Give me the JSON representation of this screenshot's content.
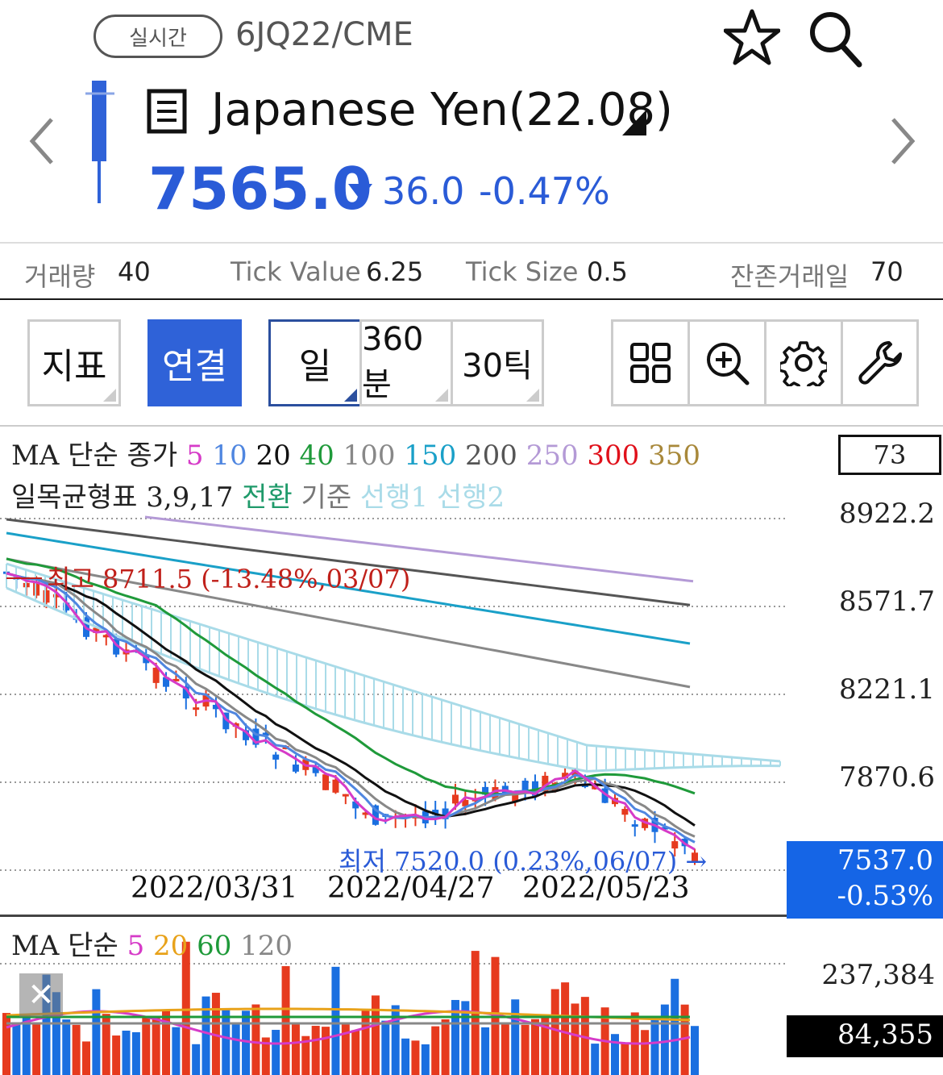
{
  "header": {
    "realtime_label": "실시간",
    "code": "6JQ22/CME",
    "name": "Japanese Yen(22.08)",
    "price": "7565.0",
    "change": "36.0",
    "change_pct": "-0.47%",
    "color_down": "#2a5bd7"
  },
  "info": {
    "volume_label": "거래량",
    "volume_value": "40",
    "tick_value_label": "Tick Value",
    "tick_value_value": "6.25",
    "tick_size_label": "Tick Size",
    "tick_size_value": "0.5",
    "remaining_label": "잔존거래일",
    "remaining_value": "70"
  },
  "toolbar": {
    "indicator_label": "지표",
    "link_label": "연결",
    "day_label": "일",
    "min360_label": "360분",
    "tick30_label": "30틱",
    "icons": [
      "grid-icon",
      "zoom-in-icon",
      "gear-icon",
      "wrench-icon"
    ]
  },
  "chart": {
    "ma_title": "MA 단순 종가",
    "ma_periods": [
      {
        "label": "5",
        "color": "#d63bc8"
      },
      {
        "label": "10",
        "color": "#4f86e0"
      },
      {
        "label": "20",
        "color": "#111111"
      },
      {
        "label": "40",
        "color": "#1f9a3a"
      },
      {
        "label": "100",
        "color": "#888888"
      },
      {
        "label": "150",
        "color": "#1aa0c8"
      },
      {
        "label": "200",
        "color": "#555555"
      },
      {
        "label": "250",
        "color": "#b49ad6"
      },
      {
        "label": "300",
        "color": "#e0101a"
      },
      {
        "label": "350",
        "color": "#a8883a"
      }
    ],
    "ichimoku_title": "일목균형표 3,9,17",
    "ichimoku_items": [
      {
        "label": "전환",
        "color": "#1f9a6a"
      },
      {
        "label": "기준",
        "color": "#777777"
      },
      {
        "label": "선행1",
        "color": "#a9dbe8"
      },
      {
        "label": "선행2",
        "color": "#a9dbe8"
      }
    ],
    "axis_top": "73",
    "y_ticks": [
      "8922.2",
      "8571.7",
      "8221.1",
      "7870.6"
    ],
    "current_price": "7537.0",
    "current_pct": "-0.53%",
    "high_annotation": "최고 8711.5 (-13.48%,03/07)",
    "low_annotation": "최저 7520.0 (0.23%,06/07)",
    "x_ticks": [
      "2022/03/31",
      "2022/04/27",
      "2022/05/23"
    ],
    "up_color": "#e63a1e",
    "down_color": "#1a6fe0"
  },
  "volume": {
    "ma_title": "MA 단순",
    "ma_periods": [
      {
        "label": "5",
        "color": "#d63bc8"
      },
      {
        "label": "20",
        "color": "#e8a21a"
      },
      {
        "label": "60",
        "color": "#1f9a3a"
      },
      {
        "label": "120",
        "color": "#888888"
      }
    ],
    "y_tick": "237,384",
    "current_volume": "84,355",
    "close_label": "✕"
  },
  "chart_data": {
    "type": "candlestick",
    "x_ticks": [
      "2022/03/31",
      "2022/04/27",
      "2022/05/23"
    ],
    "y_ticks": [
      8922.2,
      8571.7,
      8221.1,
      7870.6
    ],
    "high": 8711.5,
    "low": 7520.0,
    "last": 7537.0,
    "ylim": [
      7520,
      8960
    ]
  }
}
